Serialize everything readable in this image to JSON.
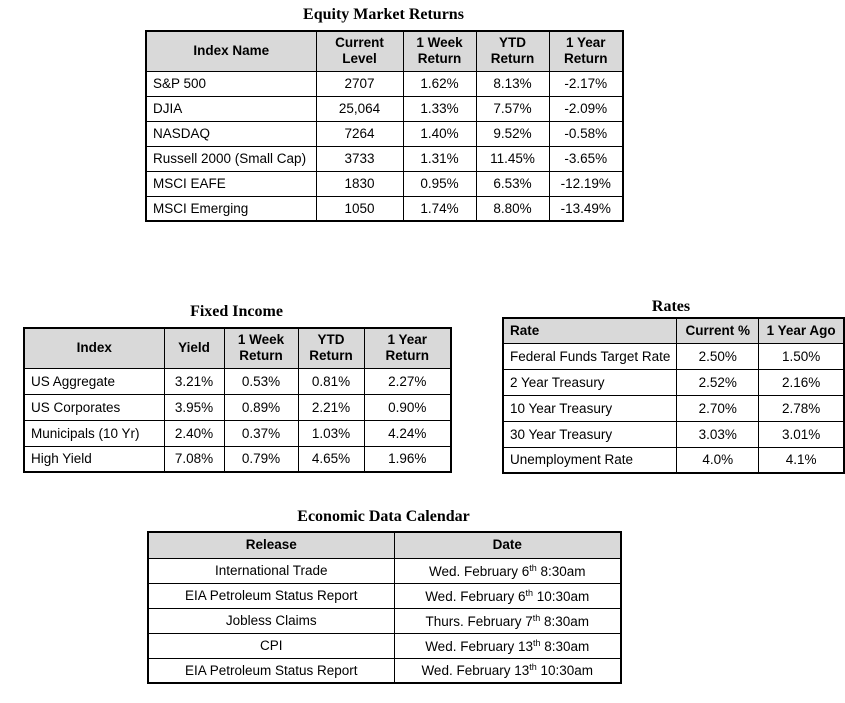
{
  "colors": {
    "header_fill": "#D9D9D9",
    "border": "#000000",
    "text": "#000000"
  },
  "tables": {
    "equity": {
      "title": "Equity Market Returns",
      "columns": [
        "Index Name",
        "Current Level",
        "1 Week Return",
        "YTD Return",
        "1 Year Return"
      ],
      "rows": [
        [
          "S&P 500",
          "2707",
          "1.62%",
          "8.13%",
          "-2.17%"
        ],
        [
          "DJIA",
          "25,064",
          "1.33%",
          "7.57%",
          "-2.09%"
        ],
        [
          "NASDAQ",
          "7264",
          "1.40%",
          "9.52%",
          "-0.58%"
        ],
        [
          "Russell 2000 (Small Cap)",
          "3733",
          "1.31%",
          "11.45%",
          "-3.65%"
        ],
        [
          "MSCI EAFE",
          "1830",
          "0.95%",
          "6.53%",
          "-12.19%"
        ],
        [
          "MSCI Emerging",
          "1050",
          "1.74%",
          "8.80%",
          "-13.49%"
        ]
      ]
    },
    "fixed_income": {
      "title": "Fixed Income",
      "columns": [
        "Index",
        "Yield",
        "1 Week Return",
        "YTD Return",
        "1 Year Return"
      ],
      "rows": [
        [
          "US Aggregate",
          "3.21%",
          "0.53%",
          "0.81%",
          "2.27%"
        ],
        [
          "US Corporates",
          "3.95%",
          "0.89%",
          "2.21%",
          "0.90%"
        ],
        [
          "Municipals (10 Yr)",
          "2.40%",
          "0.37%",
          "1.03%",
          "4.24%"
        ],
        [
          "High Yield",
          "7.08%",
          "0.79%",
          "4.65%",
          "1.96%"
        ]
      ]
    },
    "rates": {
      "title": "Rates",
      "columns": [
        "Rate",
        "Current %",
        "1 Year Ago"
      ],
      "rows": [
        [
          "Federal Funds Target Rate",
          "2.50%",
          "1.50%"
        ],
        [
          "2 Year Treasury",
          "2.52%",
          "2.16%"
        ],
        [
          "10 Year Treasury",
          "2.70%",
          "2.78%"
        ],
        [
          "30 Year Treasury",
          "3.03%",
          "3.01%"
        ],
        [
          "Unemployment Rate",
          "4.0%",
          "4.1%"
        ]
      ]
    },
    "calendar": {
      "title": "Economic Data Calendar",
      "columns": [
        "Release",
        "Date"
      ],
      "rows": [
        [
          "International Trade",
          [
            "Wed. February 6",
            "th",
            " 8:30am"
          ]
        ],
        [
          "EIA Petroleum Status Report",
          [
            "Wed. February 6",
            "th",
            " 10:30am"
          ]
        ],
        [
          "Jobless Claims",
          [
            "Thurs. February 7",
            "th",
            " 8:30am"
          ]
        ],
        [
          "CPI",
          [
            "Wed. February 13",
            "th",
            " 8:30am"
          ]
        ],
        [
          "EIA Petroleum Status Report",
          [
            "Wed. February 13",
            "th",
            " 10:30am"
          ]
        ]
      ]
    }
  }
}
